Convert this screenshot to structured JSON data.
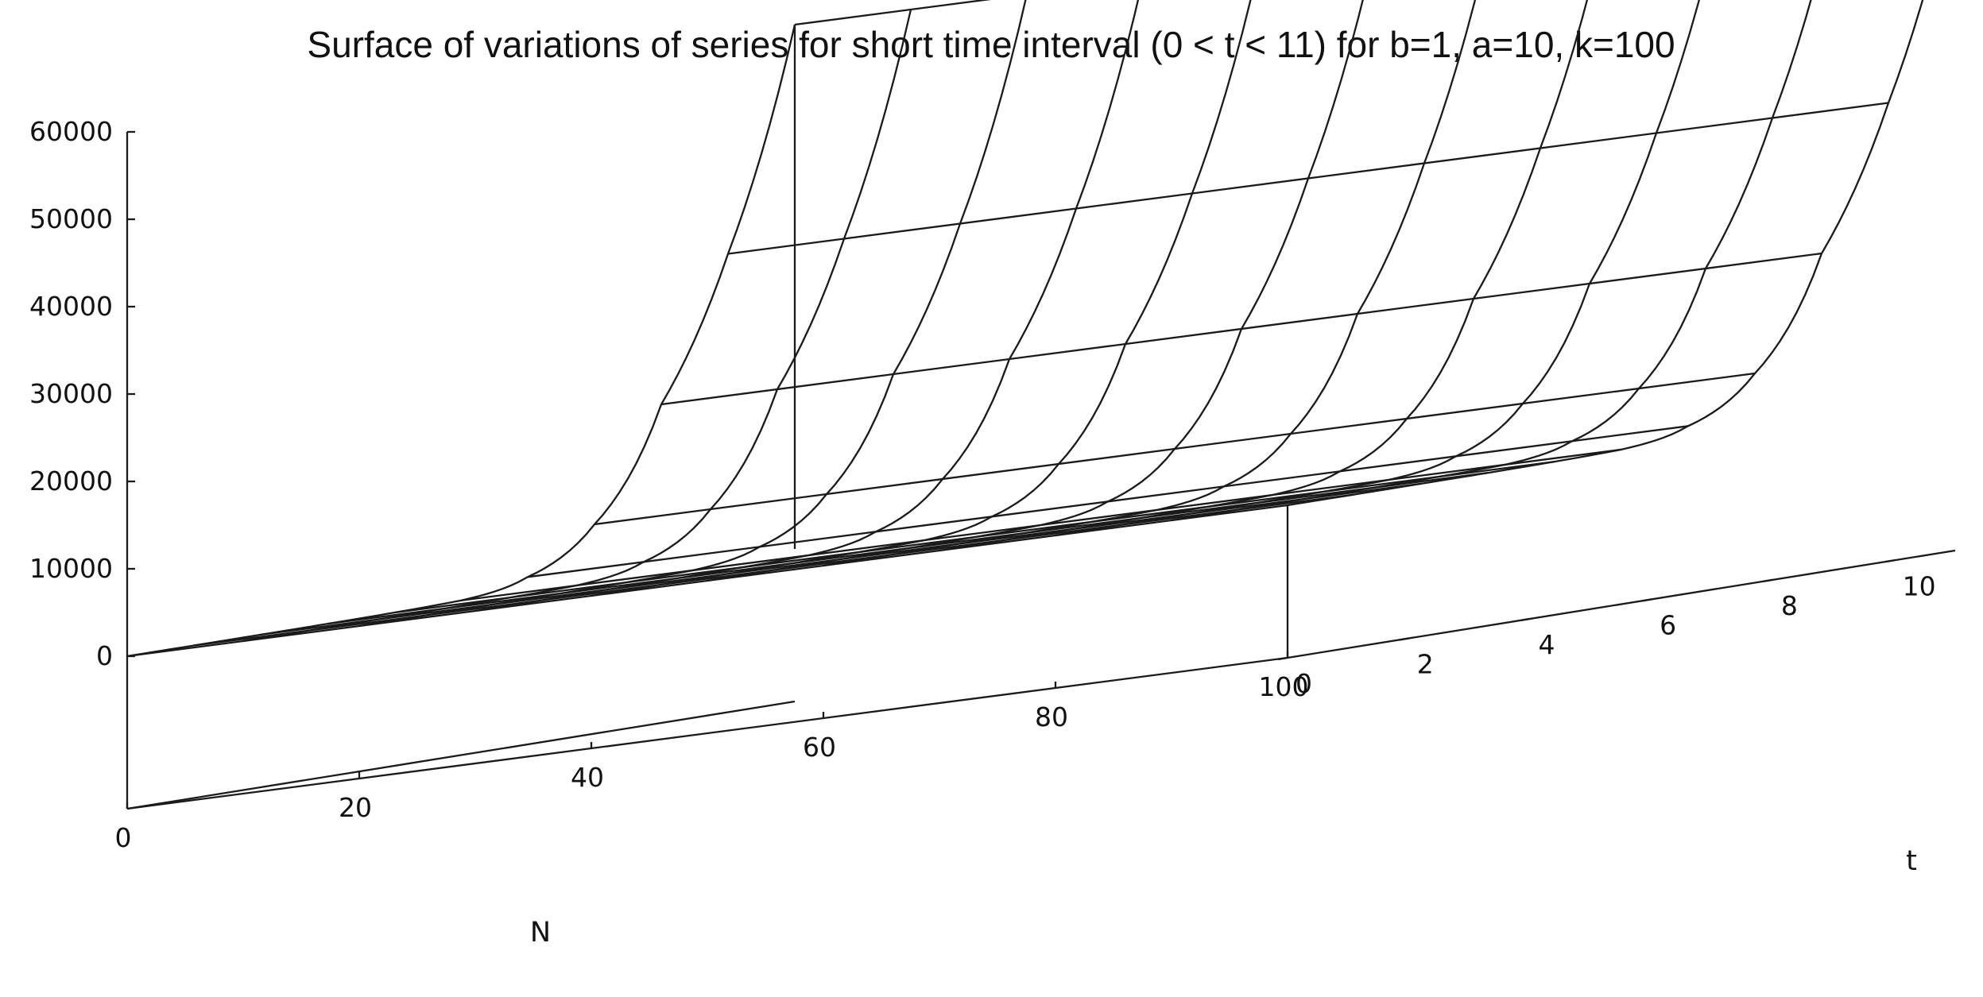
{
  "chart_data": {
    "type": "surface",
    "title": "Surface of variations of series for short time interval (0 < t < 11) for b=1, a=10, k=100",
    "xlabel": "N",
    "ylabel": "t",
    "zlabel": "",
    "xlim": [
      0,
      100
    ],
    "ylim": [
      0,
      11
    ],
    "zlim": [
      0,
      60000
    ],
    "x_ticks": [
      "0",
      "20",
      "40",
      "60",
      "80",
      "100"
    ],
    "y_ticks": [
      "0",
      "2",
      "4",
      "6",
      "8",
      "10"
    ],
    "z_ticks": [
      "0",
      "10000",
      "20000",
      "30000",
      "40000",
      "50000",
      "60000"
    ],
    "N_grid": [
      0,
      10,
      20,
      30,
      40,
      50,
      60,
      70,
      80,
      90,
      100
    ],
    "t_grid": [
      0,
      1.1,
      2.2,
      3.3,
      4.4,
      5.5,
      6.6,
      7.7,
      8.8,
      9.9,
      11
    ],
    "z_by_t": [
      0,
      2,
      8,
      27,
      80,
      240,
      1700,
      6500,
      19000,
      35000,
      60000
    ],
    "grid": true,
    "colors": {
      "line": "#1a1a1a",
      "background": "#ffffff"
    }
  }
}
